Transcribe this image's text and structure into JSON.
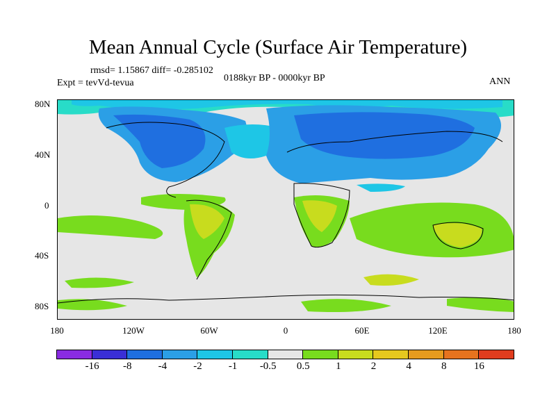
{
  "title": "Mean Annual Cycle (Surface Air Temperature)",
  "stats": "rmsd= 1.15867 diff= -0.285102",
  "experiment": "Expt = tevVd-tevua",
  "period": "0188kyr BP - 0000kyr BP",
  "season": "ANN",
  "lon_labels": [
    "180",
    "120W",
    "60W",
    "0",
    "60E",
    "120E",
    "180"
  ],
  "lat_labels": [
    "80N",
    "40N",
    "0",
    "40S",
    "80S"
  ],
  "colorbar": {
    "colors": [
      "#8a2be2",
      "#3a2fd6",
      "#1f6fe0",
      "#2b9fe6",
      "#1ec6e6",
      "#28dcc8",
      "#e6e6e6",
      "#78dc1e",
      "#c8dc1e",
      "#e6c81e",
      "#e69b1e",
      "#e6731e",
      "#e03c1e"
    ],
    "labels": [
      "-16",
      "-8",
      "-4",
      "-2",
      "-1",
      "-0.5",
      "0.5",
      "1",
      "2",
      "4",
      "8",
      "16"
    ]
  },
  "colors": {
    "land_cold": "#2b9fe6",
    "land_colder": "#1f6fe0",
    "cyan": "#1ec6e6",
    "teal": "#28dcc8",
    "neutral": "#e6e6e6",
    "green": "#78dc1e",
    "yellowgreen": "#c8dc1e"
  }
}
